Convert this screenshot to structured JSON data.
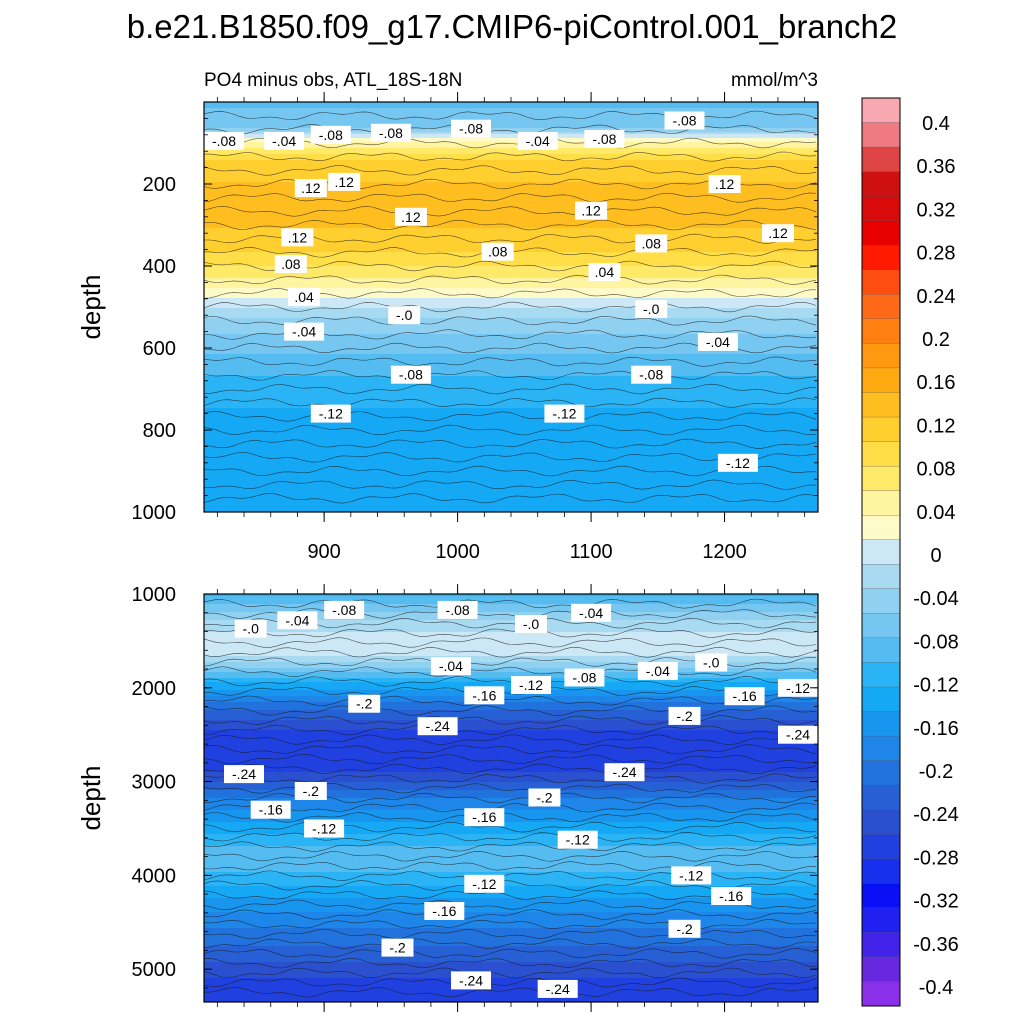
{
  "title": "b.e21.B1850.f09_g17.CMIP6-piControl.001_branch2",
  "chart_data": [
    {
      "type": "contour",
      "panel": "upper",
      "left_label": "PO4 minus obs, ATL_18S-18N",
      "right_label": "mmol/m^3",
      "ylabel": "depth",
      "xlabel": "",
      "ylim": [
        0,
        1000
      ],
      "y_reversed": true,
      "yticks": [
        "200",
        "400",
        "600",
        "800",
        "1000"
      ],
      "xlim": [
        810,
        1270
      ],
      "xticks": [
        "900",
        "1000",
        "1100",
        "1200"
      ],
      "depth_profile": [
        {
          "depth": 0,
          "value": -0.08
        },
        {
          "depth": 60,
          "value": -0.06
        },
        {
          "depth": 100,
          "value": 0.04
        },
        {
          "depth": 150,
          "value": 0.11
        },
        {
          "depth": 250,
          "value": 0.13
        },
        {
          "depth": 350,
          "value": 0.11
        },
        {
          "depth": 420,
          "value": 0.06
        },
        {
          "depth": 480,
          "value": 0.01
        },
        {
          "depth": 520,
          "value": -0.03
        },
        {
          "depth": 600,
          "value": -0.07
        },
        {
          "depth": 700,
          "value": -0.11
        },
        {
          "depth": 800,
          "value": -0.13
        },
        {
          "depth": 1000,
          "value": -0.13
        }
      ],
      "contour_labels": [
        {
          "text": "-.08",
          "x": 825,
          "depth": 95
        },
        {
          "text": "-.04",
          "x": 870,
          "depth": 95
        },
        {
          "text": "-.08",
          "x": 905,
          "depth": 80
        },
        {
          "text": "-.08",
          "x": 950,
          "depth": 75
        },
        {
          "text": "-.08",
          "x": 1010,
          "depth": 65
        },
        {
          "text": "-.04",
          "x": 1060,
          "depth": 95
        },
        {
          "text": "-.08",
          "x": 1110,
          "depth": 90
        },
        {
          "text": "-.08",
          "x": 1170,
          "depth": 45
        },
        {
          "text": ".12",
          "x": 890,
          "depth": 210
        },
        {
          "text": ".12",
          "x": 915,
          "depth": 195
        },
        {
          "text": ".12",
          "x": 965,
          "depth": 280
        },
        {
          "text": ".12",
          "x": 1100,
          "depth": 265
        },
        {
          "text": ".12",
          "x": 1200,
          "depth": 200
        },
        {
          "text": ".12",
          "x": 1240,
          "depth": 320
        },
        {
          "text": ".12",
          "x": 880,
          "depth": 330
        },
        {
          "text": ".08",
          "x": 1030,
          "depth": 365
        },
        {
          "text": ".08",
          "x": 1145,
          "depth": 345
        },
        {
          "text": ".08",
          "x": 875,
          "depth": 395
        },
        {
          "text": ".04",
          "x": 885,
          "depth": 475
        },
        {
          "text": ".04",
          "x": 1110,
          "depth": 415
        },
        {
          "text": "-.0",
          "x": 960,
          "depth": 520
        },
        {
          "text": "-.0",
          "x": 1145,
          "depth": 505
        },
        {
          "text": "-.04",
          "x": 885,
          "depth": 560
        },
        {
          "text": "-.04",
          "x": 1195,
          "depth": 585
        },
        {
          "text": "-.08",
          "x": 965,
          "depth": 665
        },
        {
          "text": "-.08",
          "x": 1145,
          "depth": 665
        },
        {
          "text": "-.12",
          "x": 905,
          "depth": 760
        },
        {
          "text": "-.12",
          "x": 1080,
          "depth": 760
        },
        {
          "text": "-.12",
          "x": 1210,
          "depth": 880
        }
      ]
    },
    {
      "type": "contour",
      "panel": "lower",
      "ylabel": "depth",
      "xlabel": "",
      "ylim": [
        1000,
        5350
      ],
      "y_reversed": true,
      "yticks": [
        "1000",
        "2000",
        "3000",
        "4000",
        "5000"
      ],
      "xlim": [
        810,
        1270
      ],
      "depth_profile": [
        {
          "depth": 1000,
          "value": -0.1
        },
        {
          "depth": 1200,
          "value": -0.05
        },
        {
          "depth": 1400,
          "value": -0.01
        },
        {
          "depth": 1600,
          "value": 0.01
        },
        {
          "depth": 1750,
          "value": -0.04
        },
        {
          "depth": 1950,
          "value": -0.12
        },
        {
          "depth": 2200,
          "value": -0.2
        },
        {
          "depth": 2500,
          "value": -0.26
        },
        {
          "depth": 2900,
          "value": -0.25
        },
        {
          "depth": 3200,
          "value": -0.18
        },
        {
          "depth": 3500,
          "value": -0.13
        },
        {
          "depth": 3800,
          "value": -0.08
        },
        {
          "depth": 4000,
          "value": -0.1
        },
        {
          "depth": 4300,
          "value": -0.15
        },
        {
          "depth": 4700,
          "value": -0.2
        },
        {
          "depth": 5100,
          "value": -0.25
        },
        {
          "depth": 5350,
          "value": -0.27
        }
      ],
      "contour_labels": [
        {
          "text": "-.0",
          "x": 845,
          "depth": 1370
        },
        {
          "text": "-.04",
          "x": 880,
          "depth": 1280
        },
        {
          "text": "-.08",
          "x": 915,
          "depth": 1170
        },
        {
          "text": "-.08",
          "x": 1000,
          "depth": 1170
        },
        {
          "text": "-.0",
          "x": 1055,
          "depth": 1320
        },
        {
          "text": "-.04",
          "x": 1100,
          "depth": 1200
        },
        {
          "text": "-.04",
          "x": 995,
          "depth": 1770
        },
        {
          "text": "-.12",
          "x": 1055,
          "depth": 1970
        },
        {
          "text": "-.08",
          "x": 1095,
          "depth": 1890
        },
        {
          "text": "-.04",
          "x": 1150,
          "depth": 1820
        },
        {
          "text": "-.0",
          "x": 1190,
          "depth": 1730
        },
        {
          "text": "-.16",
          "x": 1020,
          "depth": 2080
        },
        {
          "text": "-.16",
          "x": 1215,
          "depth": 2090
        },
        {
          "text": "-.12",
          "x": 1255,
          "depth": 2000
        },
        {
          "text": "-.2",
          "x": 930,
          "depth": 2170
        },
        {
          "text": "-.24",
          "x": 985,
          "depth": 2410
        },
        {
          "text": "-.2",
          "x": 1170,
          "depth": 2300
        },
        {
          "text": "-.24",
          "x": 1255,
          "depth": 2500
        },
        {
          "text": "-.24",
          "x": 1125,
          "depth": 2900
        },
        {
          "text": "-.24",
          "x": 840,
          "depth": 2920
        },
        {
          "text": "-.2",
          "x": 890,
          "depth": 3100
        },
        {
          "text": "-.2",
          "x": 1065,
          "depth": 3170
        },
        {
          "text": "-.16",
          "x": 860,
          "depth": 3300
        },
        {
          "text": "-.16",
          "x": 1020,
          "depth": 3380
        },
        {
          "text": "-.12",
          "x": 900,
          "depth": 3500
        },
        {
          "text": "-.12",
          "x": 1090,
          "depth": 3620
        },
        {
          "text": "-.12",
          "x": 1020,
          "depth": 4090
        },
        {
          "text": "-.12",
          "x": 1175,
          "depth": 4000
        },
        {
          "text": "-.16",
          "x": 1205,
          "depth": 4220
        },
        {
          "text": "-.16",
          "x": 990,
          "depth": 4380
        },
        {
          "text": "-.2",
          "x": 1170,
          "depth": 4570
        },
        {
          "text": "-.2",
          "x": 955,
          "depth": 4770
        },
        {
          "text": "-.24",
          "x": 1010,
          "depth": 5120
        },
        {
          "text": "-.24",
          "x": 1075,
          "depth": 5210
        }
      ]
    }
  ],
  "colorbar": {
    "labels": [
      "0.4",
      "0.36",
      "0.32",
      "0.28",
      "0.24",
      "0.2",
      "0.16",
      "0.12",
      "0.08",
      "0.04",
      "0",
      "-0.04",
      "-0.08",
      "-0.12",
      "-0.16",
      "-0.2",
      "-0.24",
      "-0.28",
      "-0.32",
      "-0.36",
      "-0.4"
    ],
    "colors": [
      "#f7a8b0",
      "#ef7a82",
      "#e04545",
      "#cf1010",
      "#d80a0a",
      "#e80000",
      "#ff1a00",
      "#ff4d10",
      "#ff6a18",
      "#ff8010",
      "#ff9a10",
      "#ffaa10",
      "#ffbe20",
      "#ffcf30",
      "#ffde48",
      "#ffe968",
      "#fff4a0",
      "#fffbc8",
      "#cce8f6",
      "#a8daf2",
      "#90d0f0",
      "#75c6f0",
      "#55bcf2",
      "#2ab4f5",
      "#14a8f5",
      "#1895ee",
      "#1e86e8",
      "#2272de",
      "#2660d4",
      "#2a50d0",
      "#2040e0",
      "#1630ee",
      "#0a10f5",
      "#2020f0",
      "#4022e8",
      "#6828e0",
      "#8a30e8"
    ]
  }
}
